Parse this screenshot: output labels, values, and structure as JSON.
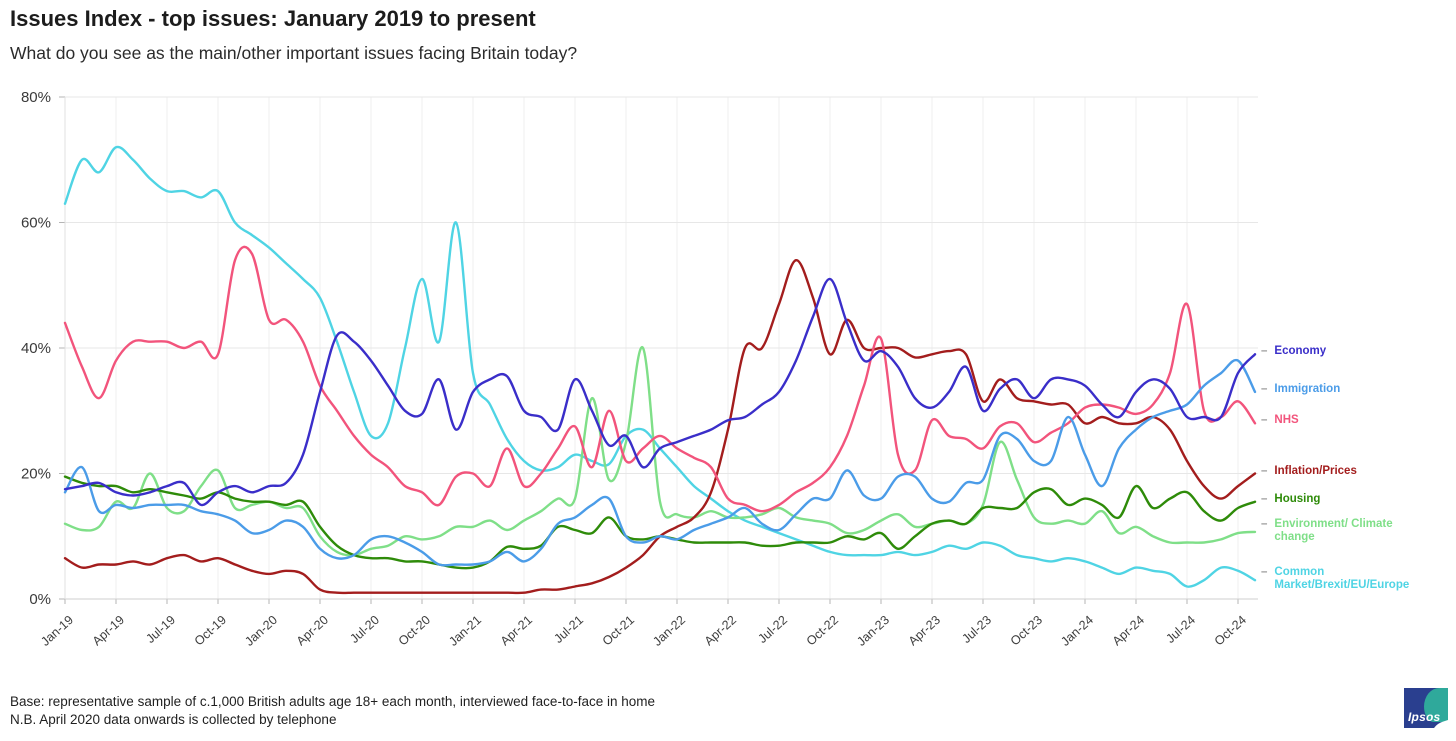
{
  "header": {
    "title": "Issues Index - top issues: January 2019 to present",
    "subtitle": "What do you see as the main/other important issues facing Britain today?"
  },
  "footer": {
    "line1": "Base: representative sample of c.1,000 British adults age 18+ each month, interviewed face-to-face in home",
    "line2": "N.B. April 2020 data onwards is collected by telephone",
    "logo_text": "Ipsos"
  },
  "chart_data": {
    "type": "line",
    "title": "Issues Index - top issues: January 2019 to present",
    "xlabel": "",
    "ylabel": "",
    "ylim": [
      0,
      80
    ],
    "yticks": [
      "0%",
      "20%",
      "40%",
      "60%",
      "80%"
    ],
    "grid": true,
    "legend_position": "right",
    "legend_dash_color": "#999999",
    "x_tick_labels": [
      "Jan-19",
      "Apr-19",
      "Jul-19",
      "Oct-19",
      "Jan-20",
      "Apr-20",
      "Jul-20",
      "Oct-20",
      "Jan-21",
      "Apr-21",
      "Jul-21",
      "Oct-21",
      "Jan-22",
      "Apr-22",
      "Jul-22",
      "Oct-22",
      "Jan-23",
      "Apr-23",
      "Jul-23",
      "Oct-23",
      "Jan-24",
      "Apr-24",
      "Jul-24",
      "Oct-24"
    ],
    "x_monthly_range": "Jan-2019 to Nov-2024",
    "series": [
      {
        "name": "Economy",
        "color": "#3a2ec9",
        "values": [
          17.5,
          18,
          18.5,
          17,
          16.5,
          17,
          18,
          18.5,
          15,
          17,
          18,
          17,
          18,
          18.5,
          23,
          33,
          42,
          41,
          38,
          34,
          30,
          29.5,
          35,
          27,
          33,
          35,
          35.5,
          30,
          29,
          27,
          35,
          30,
          24.5,
          26,
          21,
          24,
          25,
          26,
          27,
          28.5,
          29,
          31,
          33,
          38,
          45,
          51,
          44,
          38,
          39.5,
          37,
          32,
          30.5,
          33,
          37,
          30,
          33.5,
          35,
          32,
          35,
          35,
          34,
          31,
          29,
          33,
          35,
          33.5,
          29,
          29,
          29,
          36,
          39
        ]
      },
      {
        "name": "Immigration",
        "color": "#4b9ce8",
        "values": [
          17,
          21,
          14,
          15,
          14.5,
          15,
          15,
          15,
          14,
          13.5,
          12.5,
          10.5,
          11,
          12.5,
          11.5,
          8,
          6.5,
          7,
          9.5,
          10,
          9,
          7.5,
          5.5,
          5.5,
          5.5,
          6,
          7.5,
          6,
          8,
          12,
          13,
          15,
          16,
          10,
          9,
          10,
          9.5,
          11,
          12,
          13,
          14.5,
          12,
          11,
          13.5,
          16,
          16,
          20.5,
          16.5,
          16,
          19.5,
          19.5,
          16,
          15.5,
          18.5,
          19,
          26,
          25.5,
          22,
          22,
          29,
          23,
          18,
          24,
          27,
          29,
          30,
          31,
          34,
          36,
          38,
          33
        ]
      },
      {
        "name": "NHS",
        "color": "#f2547c",
        "values": [
          44,
          37,
          32,
          38,
          41,
          41,
          41,
          40,
          41,
          39,
          54,
          55,
          44.5,
          44.5,
          41,
          34,
          30,
          26,
          23,
          21,
          18,
          17,
          15,
          19.5,
          20,
          18,
          24,
          18,
          20,
          24,
          27.5,
          21,
          30,
          22,
          24,
          26,
          24,
          22.5,
          21,
          16,
          15,
          14,
          15,
          17,
          18.5,
          21,
          26,
          34,
          41.5,
          23,
          20.5,
          28.5,
          26,
          25.5,
          24,
          27.5,
          28,
          25,
          26.5,
          28,
          30.5,
          31,
          30.5,
          29.5,
          31,
          36,
          47,
          30,
          29,
          31.5,
          28
        ]
      },
      {
        "name": "Inflation/Prices",
        "color": "#a31d1d",
        "values": [
          6.5,
          5,
          5.5,
          5.5,
          6,
          5.5,
          6.5,
          7,
          6,
          6.5,
          5.5,
          4.5,
          4,
          4.5,
          4,
          1.5,
          1,
          1,
          1,
          1,
          1,
          1,
          1,
          1,
          1,
          1,
          1,
          1,
          1.5,
          1.5,
          2,
          2.5,
          3.5,
          5,
          7,
          10,
          11.5,
          13,
          17,
          27,
          40,
          40,
          47,
          54,
          48,
          39,
          44.5,
          40,
          40,
          40,
          38.5,
          39,
          39.5,
          39,
          31.5,
          35,
          32,
          31.5,
          31,
          31,
          28,
          29,
          28,
          28,
          29,
          27,
          22,
          18,
          16,
          18,
          20
        ]
      },
      {
        "name": "Housing",
        "color": "#2e8b09",
        "values": [
          19.5,
          18.5,
          18,
          18,
          17,
          17.5,
          17,
          16.5,
          16,
          17,
          16,
          15.5,
          15.5,
          15,
          15.5,
          11.5,
          8.5,
          7,
          6.5,
          6.5,
          6,
          6,
          5.5,
          5,
          5,
          6,
          8.3,
          8,
          8.5,
          11.5,
          11,
          10.5,
          13,
          10,
          9.5,
          10,
          9.5,
          9,
          9,
          9,
          9,
          8.5,
          8.5,
          9,
          9,
          9,
          10,
          9.5,
          10.5,
          8,
          10,
          12,
          12.5,
          12,
          14.5,
          14.5,
          14.5,
          17,
          17.5,
          15,
          16,
          15,
          13,
          18,
          14.5,
          16,
          17,
          14,
          12.5,
          14.5,
          15.5
        ]
      },
      {
        "name": "Environment/ Climate change",
        "color": "#7fdf88",
        "values": [
          12,
          11,
          11.5,
          15.5,
          14.5,
          20,
          14.5,
          14,
          18,
          20.5,
          14.5,
          15,
          15.5,
          14.5,
          14.5,
          10,
          7.5,
          7,
          8,
          8.5,
          10,
          9.5,
          10,
          11.5,
          11.5,
          12.5,
          11,
          12.5,
          14,
          16,
          16,
          32,
          19,
          25,
          40,
          15.5,
          13.5,
          13,
          14,
          13,
          13,
          13.5,
          14.5,
          13,
          12.5,
          12,
          10.5,
          11,
          12.5,
          13.5,
          11.5,
          12,
          12.5,
          12,
          15,
          25,
          19,
          13,
          12,
          12.5,
          12,
          14,
          10.5,
          11.5,
          10,
          9,
          9,
          9,
          9.5,
          10.5,
          10.7
        ]
      },
      {
        "name": "Common Market/Brexit/EU/Europe",
        "color": "#4fd4e4",
        "values": [
          63,
          70,
          68,
          72,
          70,
          67,
          65,
          65,
          64,
          65,
          60,
          58,
          56,
          53.5,
          51,
          48,
          41,
          33,
          26,
          28,
          40,
          51,
          41,
          60,
          36,
          31,
          25.5,
          22,
          20.5,
          21,
          23,
          22,
          21.5,
          26,
          27,
          24,
          21,
          18,
          16,
          14,
          12.5,
          11.5,
          10.5,
          9.5,
          8.5,
          7.5,
          7,
          7,
          7,
          7.5,
          7,
          7.5,
          8.5,
          8,
          9,
          8.5,
          7,
          6.5,
          6,
          6.5,
          6,
          5,
          4,
          5,
          4.5,
          4,
          2,
          3,
          5,
          4.5,
          3
        ]
      }
    ]
  }
}
